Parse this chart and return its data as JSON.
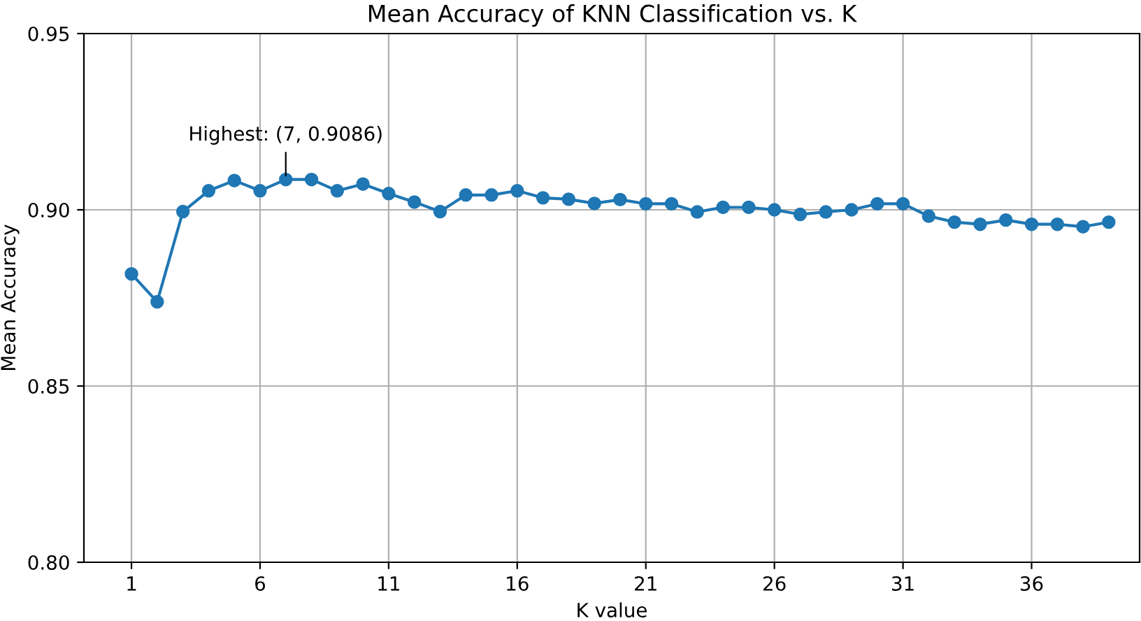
{
  "chart_data": {
    "type": "line",
    "title": "Mean Accuracy of KNN Classification vs. K",
    "xlabel": "K value",
    "ylabel": "Mean Accuracy",
    "x": [
      1,
      2,
      3,
      4,
      5,
      6,
      7,
      8,
      9,
      10,
      11,
      12,
      13,
      14,
      15,
      16,
      17,
      18,
      19,
      20,
      21,
      22,
      23,
      24,
      25,
      26,
      27,
      28,
      29,
      30,
      31,
      32,
      33,
      34,
      35,
      36,
      37,
      38,
      39
    ],
    "series": [
      {
        "color": "#1f77b4",
        "values": [
          0.8818,
          0.8739,
          0.8995,
          0.9054,
          0.9083,
          0.9054,
          0.9086,
          0.9086,
          0.9054,
          0.9073,
          0.9046,
          0.9022,
          0.8995,
          0.9042,
          0.9042,
          0.9054,
          0.9034,
          0.903,
          0.9018,
          0.9029,
          0.9017,
          0.9017,
          0.8994,
          0.9007,
          0.9007,
          0.9,
          0.8987,
          0.8994,
          0.9,
          0.9017,
          0.9017,
          0.8982,
          0.8965,
          0.8959,
          0.8971,
          0.8959,
          0.8959,
          0.8952,
          0.8965
        ]
      }
    ],
    "xlim": [
      -0.85,
      40.2
    ],
    "xticks": [
      1,
      6,
      11,
      16,
      21,
      26,
      31,
      36
    ],
    "ylim": [
      0.8,
      0.95
    ],
    "yticks": [
      {
        "value": 0.8,
        "label": "0.80"
      },
      {
        "value": 0.85,
        "label": "0.85"
      },
      {
        "value": 0.9,
        "label": "0.90"
      },
      {
        "value": 0.95,
        "label": "0.95"
      }
    ],
    "grid": true,
    "marker": "circle",
    "line_style": "solid",
    "annotations": [
      {
        "text": "Highest: (7, 0.9086)",
        "x": 7,
        "y": 0.9086
      }
    ]
  }
}
